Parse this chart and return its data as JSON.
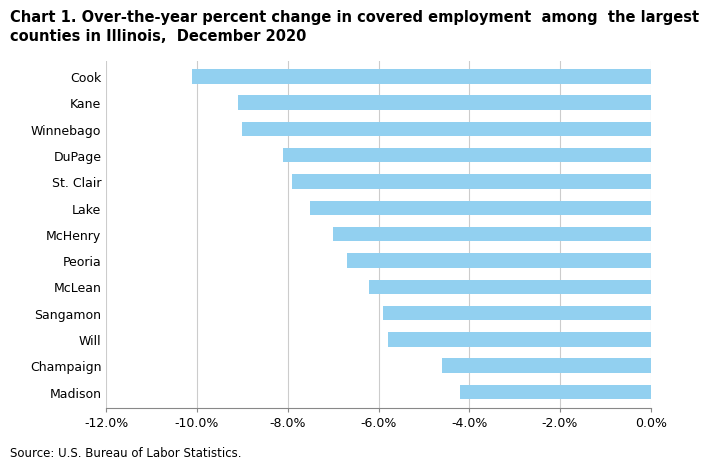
{
  "categories": [
    "Cook",
    "Kane",
    "Winnebago",
    "DuPage",
    "St. Clair",
    "Lake",
    "McHenry",
    "Peoria",
    "McLean",
    "Sangamon",
    "Will",
    "Champaign",
    "Madison"
  ],
  "values": [
    -10.1,
    -9.1,
    -9.0,
    -8.1,
    -7.9,
    -7.5,
    -7.0,
    -6.7,
    -6.2,
    -5.9,
    -5.8,
    -4.6,
    -4.2
  ],
  "bar_color": "#92d0f0",
  "title_line1": "Chart 1. Over-the-year percent change in covered employment  among  the largest",
  "title_line2": "counties in Illinois,  December 2020",
  "source": "Source: U.S. Bureau of Labor Statistics.",
  "title_fontsize": 10.5,
  "tick_fontsize": 9,
  "bar_height": 0.55,
  "xlim": [
    -12.0,
    0.0
  ],
  "xticks": [
    -12.0,
    -10.0,
    -8.0,
    -6.0,
    -4.0,
    -2.0,
    0.0
  ],
  "background_color": "#ffffff",
  "bar_color_hex": "#92d0f0",
  "grid_color": "#cccccc"
}
